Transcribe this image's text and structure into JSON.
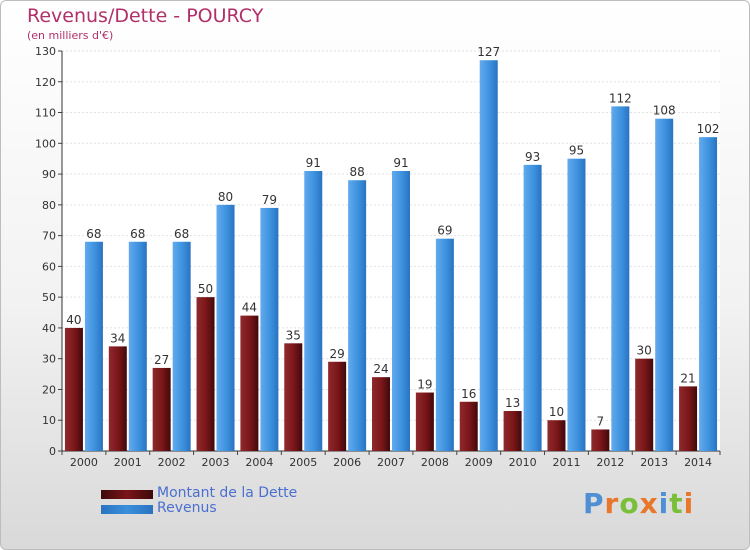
{
  "header": {
    "title": "Revenus/Dette - POURCY",
    "subtitle": "(en milliers d'€)"
  },
  "colors": {
    "debt": "#7a1518",
    "revenue": "#3a8fdc",
    "title": "#b0306a",
    "legend_text": "#4a6fd0"
  },
  "legend": {
    "debt_label": "Montant de la Dette",
    "revenue_label": "Revenus"
  },
  "logo": {
    "text": "Proxiti",
    "letter_colors": [
      "#4f8fd6",
      "#e8762b",
      "#7abf3a",
      "#e8762b",
      "#4f8fd6",
      "#7abf3a",
      "#e8762b"
    ]
  },
  "chart_data": {
    "type": "bar",
    "title": "Revenus/Dette - POURCY",
    "subtitle": "(en milliers d'€)",
    "categories": [
      "2000",
      "2001",
      "2002",
      "2003",
      "2004",
      "2005",
      "2006",
      "2007",
      "2008",
      "2009",
      "2010",
      "2011",
      "2012",
      "2013",
      "2014"
    ],
    "series": [
      {
        "name": "Montant de la Dette",
        "values": [
          40,
          34,
          27,
          50,
          44,
          35,
          29,
          24,
          19,
          16,
          13,
          10,
          7,
          30,
          21
        ]
      },
      {
        "name": "Revenus",
        "values": [
          68,
          68,
          68,
          80,
          79,
          91,
          88,
          91,
          69,
          127,
          93,
          95,
          112,
          108,
          102
        ]
      }
    ],
    "ylim": [
      0,
      130
    ],
    "yticks": [
      0,
      10,
      20,
      30,
      40,
      50,
      60,
      70,
      80,
      90,
      100,
      110,
      120,
      130
    ],
    "grid": true,
    "legend_position": "bottom-left"
  }
}
